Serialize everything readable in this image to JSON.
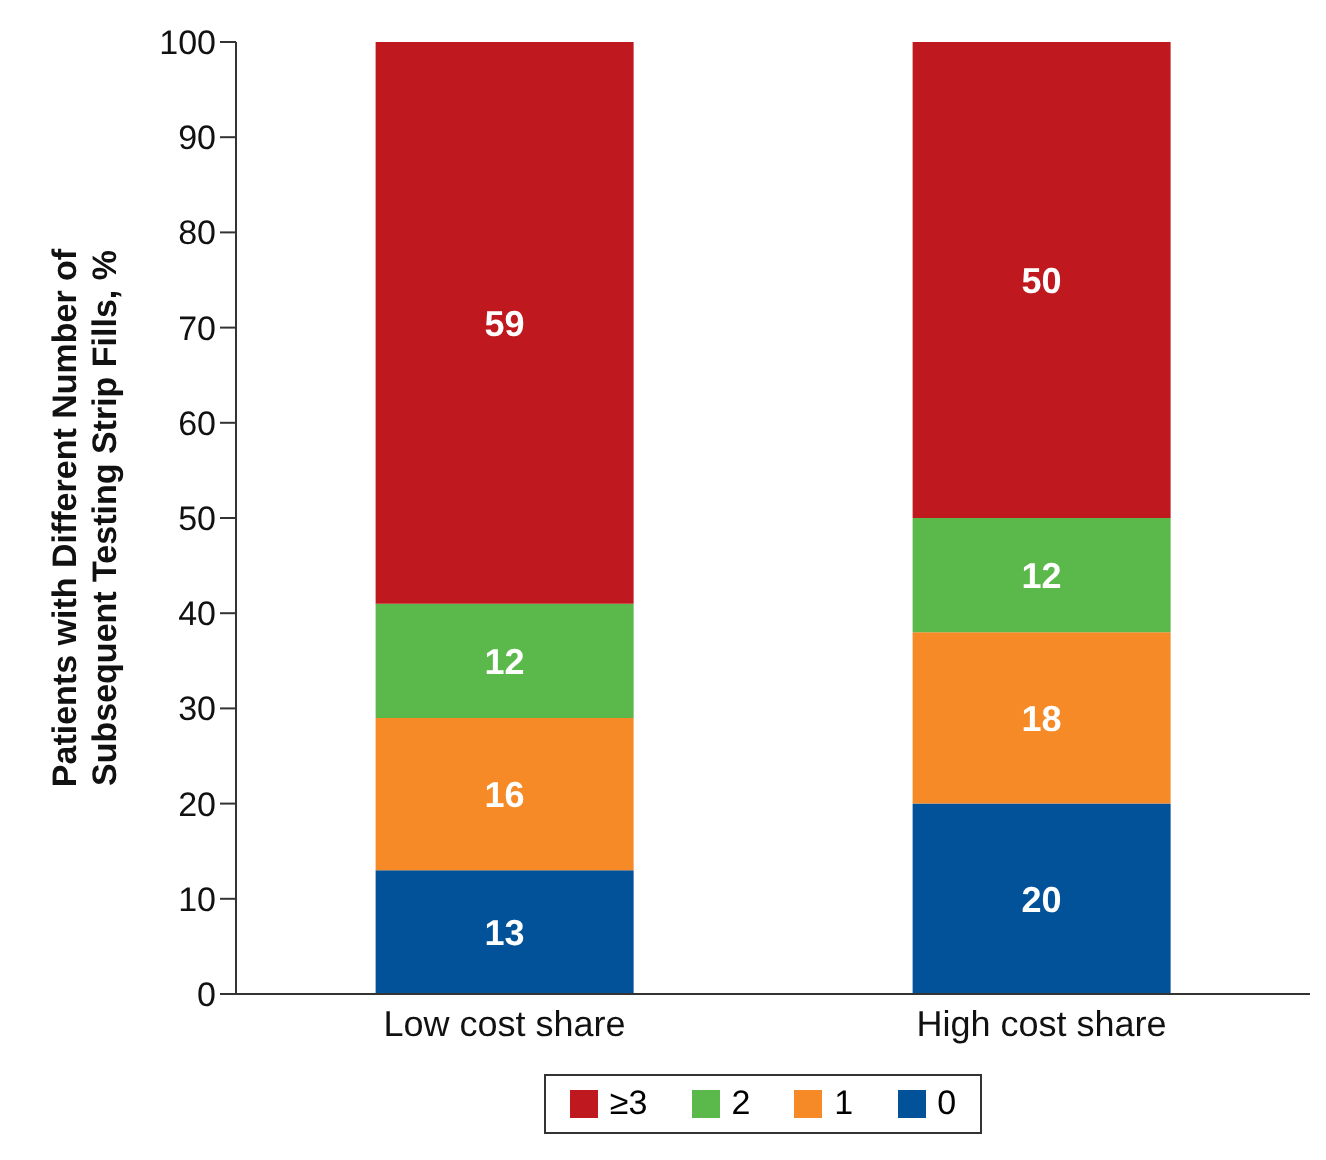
{
  "chart_data": {
    "type": "bar",
    "stacked": true,
    "ylabel": "Patients with Different Number of Subsequent Testing Strip Fills, %",
    "categories": [
      "Low cost share",
      "High cost share"
    ],
    "series": [
      {
        "name": "0",
        "color": "#02529a",
        "values": [
          13,
          20
        ]
      },
      {
        "name": "1",
        "color": "#f58a27",
        "values": [
          16,
          18
        ]
      },
      {
        "name": "2",
        "color": "#5ab94a",
        "values": [
          12,
          12
        ]
      },
      {
        "name": "≥3",
        "color": "#c0181f",
        "values": [
          59,
          50
        ]
      }
    ],
    "ylim": [
      0,
      100
    ],
    "yticks": [
      0,
      10,
      20,
      30,
      40,
      50,
      60,
      70,
      80,
      90,
      100
    ],
    "data_labels": true,
    "grid": false,
    "legend": "bottom"
  }
}
